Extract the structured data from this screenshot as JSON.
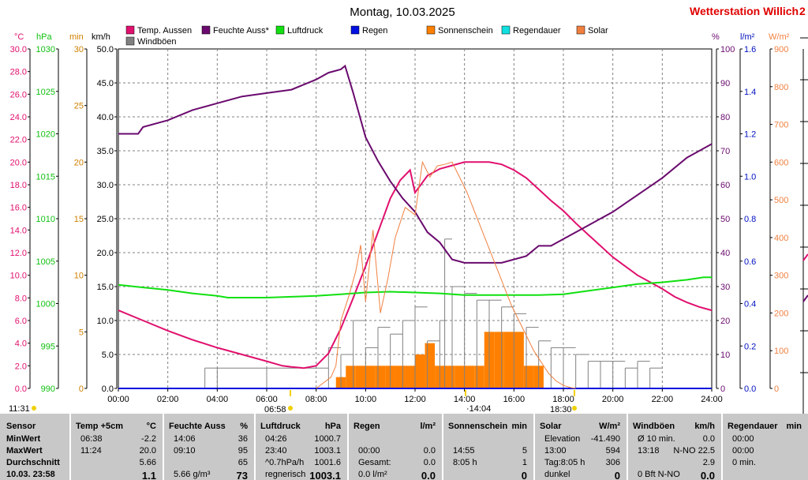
{
  "header": {
    "title": "Montag, 10.03.2025",
    "station": "Wetterstation Willich",
    "station_suffix": "2"
  },
  "legend": [
    {
      "label": "Temp. Aussen",
      "color": "#e0106e"
    },
    {
      "label": "Feuchte Auss*",
      "color": "#6a0a6e"
    },
    {
      "label": "Luftdruck",
      "color": "#10e010"
    },
    {
      "label": "Regen",
      "color": "#0010e0"
    },
    {
      "label": "Sonnenschein",
      "color": "#ff8000"
    },
    {
      "label": "Regendauer",
      "color": "#10e0e0"
    },
    {
      "label": "Solar",
      "color": "#f08040"
    },
    {
      "label": "Windböen",
      "color": "#808080"
    }
  ],
  "axis_units": {
    "temp": "°C",
    "pressure": "hPa",
    "minutes": "min",
    "wind": "km/h",
    "humidity": "%",
    "rain": "l/m²",
    "solar": "W/m²"
  },
  "events": {
    "sunrise_left": "11:31",
    "sunrise": "06:58",
    "noon": "14:04",
    "noon_display": "·14:04",
    "sunset": "18:30"
  },
  "chart_data": {
    "type": "line",
    "x_unit": "time of day (hours)",
    "xlim": [
      0,
      24
    ],
    "x_ticks": [
      "00:00",
      "02:00",
      "04:00",
      "06:00",
      "08:00",
      "10:00",
      "12:00",
      "14:00",
      "16:00",
      "18:00",
      "20:00",
      "22:00",
      "24:00"
    ],
    "axes": {
      "temp": {
        "unit": "°C",
        "range": [
          0,
          30
        ],
        "ticks": [
          "0.0",
          "2.0",
          "4.0",
          "6.0",
          "8.0",
          "10.0",
          "12.0",
          "14.0",
          "16.0",
          "18.0",
          "20.0",
          "22.0",
          "24.0",
          "26.0",
          "28.0",
          "30.0"
        ],
        "color": "#e0106e"
      },
      "pressure": {
        "unit": "hPa",
        "range": [
          990,
          1030
        ],
        "ticks": [
          "990",
          "995",
          "1000",
          "1005",
          "1010",
          "1015",
          "1020",
          "1025",
          "1030"
        ],
        "color": "#10c010"
      },
      "minutes": {
        "unit": "min",
        "range": [
          0,
          30
        ],
        "ticks": [
          "0",
          "5",
          "10",
          "15",
          "20",
          "25",
          "30"
        ],
        "color": "#d08000"
      },
      "wind": {
        "unit": "km/h",
        "range": [
          0,
          50
        ],
        "ticks": [
          "0.0",
          "5.0",
          "10.0",
          "15.0",
          "20.0",
          "25.0",
          "30.0",
          "35.0",
          "40.0",
          "45.0",
          "50.0"
        ],
        "color": "#000000"
      },
      "humidity": {
        "unit": "%",
        "range": [
          0,
          100
        ],
        "ticks": [
          "0",
          "10",
          "20",
          "30",
          "40",
          "50",
          "60",
          "70",
          "80",
          "90",
          "100"
        ],
        "color": "#6a0a6e"
      },
      "rain": {
        "unit": "l/m²",
        "range": [
          0,
          1.6
        ],
        "ticks": [
          "0.0",
          "0.2",
          "0.4",
          "0.6",
          "0.8",
          "1.0",
          "1.2",
          "1.4",
          "1.6"
        ],
        "color": "#0010c0"
      },
      "solar": {
        "unit": "W/m²",
        "range": [
          0,
          900
        ],
        "ticks": [
          "0",
          "100",
          "200",
          "300",
          "400",
          "500",
          "600",
          "700",
          "800",
          "900"
        ],
        "color": "#f08040"
      }
    },
    "series": [
      {
        "name": "Temp. Aussen",
        "axis": "temp",
        "color": "#e0106e",
        "x": [
          0,
          1,
          2,
          3,
          4,
          5,
          6,
          6.63,
          7,
          7.5,
          8,
          8.5,
          9,
          9.5,
          10,
          10.5,
          11,
          11.4,
          11.8,
          12,
          12.5,
          13,
          13.5,
          14,
          14.5,
          15,
          15.5,
          16,
          16.5,
          17,
          17.5,
          18,
          18.5,
          19,
          19.5,
          20,
          20.5,
          21,
          21.5,
          22,
          22.5,
          23,
          23.5,
          24
        ],
        "y": [
          6.9,
          6.0,
          5.1,
          4.3,
          3.6,
          3.0,
          2.4,
          2.0,
          1.9,
          1.8,
          2.0,
          3.1,
          5.3,
          8.0,
          10.8,
          13.8,
          16.8,
          18.4,
          19.3,
          17.3,
          18.8,
          19.4,
          19.7,
          20.0,
          20.0,
          20.0,
          19.8,
          19.3,
          18.6,
          17.6,
          16.6,
          15.7,
          14.6,
          13.6,
          12.6,
          11.6,
          10.8,
          10.0,
          9.4,
          8.8,
          8.1,
          7.6,
          7.2,
          6.9
        ]
      },
      {
        "name": "Feuchte Auss*",
        "axis": "humidity",
        "color": "#6a0a6e",
        "x": [
          0,
          0.8,
          1,
          2,
          3,
          4,
          5,
          6,
          7,
          8,
          8.5,
          9,
          9.17,
          9.5,
          10,
          10.5,
          11,
          11.5,
          12,
          12.5,
          13,
          13.5,
          14,
          14.5,
          15,
          15.5,
          16,
          16.5,
          17,
          17.5,
          18,
          19,
          20,
          21,
          22,
          23,
          24
        ],
        "y": [
          75,
          75,
          77,
          79,
          82,
          84,
          86,
          87,
          88,
          91,
          93,
          94,
          95,
          87,
          74,
          67,
          61,
          56,
          52,
          46,
          43,
          38,
          37,
          37,
          37,
          37,
          38,
          39,
          42,
          42,
          44,
          48,
          52,
          57,
          62,
          68,
          72
        ]
      },
      {
        "name": "Luftdruck",
        "axis": "pressure",
        "color": "#10e010",
        "x": [
          0,
          1,
          2,
          3,
          4,
          4.43,
          5,
          6,
          7,
          8,
          9,
          10,
          11,
          12,
          13,
          14,
          15,
          16,
          17,
          18,
          19,
          20,
          21,
          22,
          23,
          23.67,
          24
        ],
        "y": [
          1002.2,
          1001.9,
          1001.6,
          1001.2,
          1000.9,
          1000.7,
          1000.7,
          1000.7,
          1000.8,
          1000.9,
          1001.1,
          1001.3,
          1001.4,
          1001.3,
          1001.2,
          1001.0,
          1001.0,
          1001.0,
          1001.0,
          1001.1,
          1001.5,
          1001.9,
          1002.3,
          1002.5,
          1002.8,
          1003.1,
          1003.1
        ]
      },
      {
        "name": "Regen",
        "axis": "rain",
        "color": "#0010e0",
        "x": [
          0,
          24
        ],
        "y": [
          0,
          0
        ]
      },
      {
        "name": "Solar",
        "axis": "solar",
        "color": "#f08040",
        "x": [
          8,
          8.6,
          8.8,
          9,
          9.3,
          9.6,
          9.8,
          10,
          10.3,
          10.6,
          10.9,
          11.2,
          11.6,
          12,
          12.3,
          12.6,
          12.9,
          13.2,
          13.5,
          13.8,
          14.1,
          14.4,
          14.7,
          15,
          15.3,
          15.6,
          15.9,
          16.2,
          16.5,
          16.8,
          17.1,
          17.4,
          17.7,
          18,
          18.3,
          18.5
        ],
        "y": [
          0,
          30,
          60,
          180,
          240,
          310,
          380,
          230,
          420,
          200,
          290,
          400,
          480,
          460,
          600,
          560,
          590,
          594,
          600,
          560,
          520,
          470,
          420,
          370,
          320,
          270,
          220,
          180,
          140,
          100,
          70,
          40,
          20,
          8,
          2,
          0
        ]
      }
    ],
    "sunshine_bars": {
      "name": "Sonnenschein",
      "axis": "minutes",
      "color": "#ff8000",
      "x": [
        8.8,
        9.2,
        9.6,
        10,
        10.4,
        10.8,
        11.2,
        11.6,
        12,
        12.4,
        12.8,
        13.2,
        13.6,
        14,
        14.4,
        14.8,
        15.2,
        15.6,
        16,
        16.4,
        16.8,
        17.2
      ],
      "y": [
        1,
        2,
        2,
        2,
        2,
        2,
        2,
        2,
        3,
        4,
        2,
        2,
        2,
        2,
        2,
        5,
        5,
        5,
        5,
        2,
        2,
        0
      ]
    },
    "wind_gusts": {
      "name": "Windböen",
      "axis": "wind",
      "color": "#808080",
      "x": [
        0,
        3.5,
        4.0,
        6.0,
        8.5,
        9.0,
        9.5,
        10.0,
        10.5,
        11.0,
        11.5,
        12.0,
        12.5,
        13.0,
        13.2,
        13.5,
        14.0,
        14.5,
        15.0,
        15.5,
        16.0,
        16.5,
        17.0,
        17.5,
        18.0,
        18.5,
        19.0,
        19.5,
        20.0,
        20.5,
        21.0,
        21.5,
        22.0
      ],
      "y": [
        0,
        3,
        3,
        3,
        6,
        5,
        10,
        6,
        9,
        8,
        10,
        12,
        7,
        10,
        22,
        15,
        14,
        13,
        13,
        12,
        11,
        9,
        7,
        6,
        6,
        5,
        4,
        4,
        4,
        3,
        4,
        3,
        0
      ]
    }
  },
  "table": {
    "sensor": {
      "title": "Sensor",
      "rows": [
        "MinWert",
        "MaxWert",
        "Durchschnitt",
        "10.03. 23:58"
      ]
    },
    "cols": [
      {
        "title": "Temp +5cm",
        "unit": "°C",
        "rows": [
          [
            "06:38",
            "-2.2"
          ],
          [
            "11:24",
            "20.0"
          ],
          [
            "",
            "5.66"
          ],
          [
            "",
            "1.1"
          ]
        ]
      },
      {
        "title": "Feuchte Auss",
        "unit": "%",
        "rows": [
          [
            "14:06",
            "36"
          ],
          [
            "09:10",
            "95"
          ],
          [
            "",
            "65"
          ],
          [
            "5.66 g/m³",
            "73"
          ]
        ]
      },
      {
        "title": "Luftdruck",
        "unit": "hPa",
        "rows": [
          [
            "04:26",
            "1000.7"
          ],
          [
            "23:40",
            "1003.1"
          ],
          [
            "^0.7hPa/h",
            "1001.6"
          ],
          [
            "regnerisch",
            "1003.1"
          ]
        ]
      },
      {
        "title": "Regen",
        "unit": "l/m²",
        "rows": [
          [
            "",
            ""
          ],
          [
            "00:00",
            "0.0"
          ],
          [
            "Gesamt:",
            "0.0"
          ],
          [
            "0.0 l/m²",
            "0.0"
          ]
        ]
      },
      {
        "title": "Sonnenschein",
        "unit": "min",
        "rows": [
          [
            "",
            ""
          ],
          [
            "14:55",
            "5"
          ],
          [
            "8:05 h",
            "1"
          ],
          [
            "",
            "0"
          ]
        ]
      },
      {
        "title": "Solar",
        "unit": "W/m²",
        "rows": [
          [
            "Elevation",
            "-41.490"
          ],
          [
            "13:00",
            "594"
          ],
          [
            "Tag:8:05 h",
            "306"
          ],
          [
            "dunkel",
            "0"
          ]
        ]
      },
      {
        "title": "Windböen",
        "unit": "km/h",
        "rows": [
          [
            "Ø 10 min.",
            "0.0"
          ],
          [
            "13:18",
            "N-NO 22.5"
          ],
          [
            "",
            "2.9"
          ],
          [
            "0 Bft N-NO",
            "0.0"
          ]
        ]
      },
      {
        "title": "Regendauer",
        "unit": "min",
        "rows": [
          [
            "00:00",
            ""
          ],
          [
            "00:00",
            ""
          ],
          [
            "0 min.",
            ""
          ],
          [
            "",
            ""
          ]
        ]
      }
    ]
  }
}
